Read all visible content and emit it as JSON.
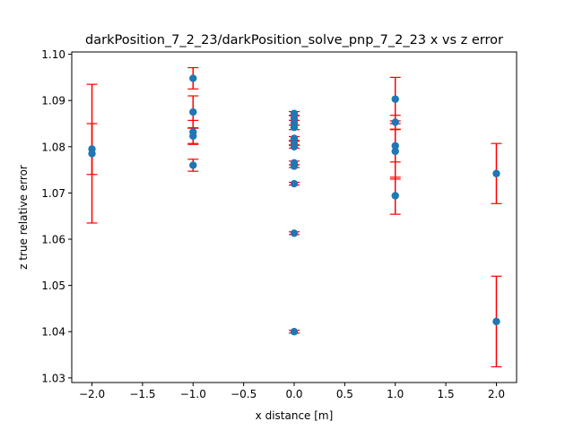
{
  "chart_data": {
    "type": "scatter",
    "title": "darkPosition_7_2_23/darkPosition_solve_pnp_7_2_23 x vs z error",
    "xlabel": "x distance [m]",
    "ylabel": "z true relative error",
    "xlim": [
      -2.2,
      2.2
    ],
    "ylim": [
      1.029,
      1.1005
    ],
    "xticks": [
      -2.0,
      -1.5,
      -1.0,
      -0.5,
      0.0,
      0.5,
      1.0,
      1.5,
      2.0
    ],
    "xtick_labels": [
      "−2.0",
      "−1.5",
      "−1.0",
      "−0.5",
      "0.0",
      "0.5",
      "1.0",
      "1.5",
      "2.0"
    ],
    "yticks": [
      1.03,
      1.04,
      1.05,
      1.06,
      1.07,
      1.08,
      1.09,
      1.1
    ],
    "ytick_labels": [
      "1.03",
      "1.04",
      "1.05",
      "1.06",
      "1.07",
      "1.08",
      "1.09",
      "1.10"
    ],
    "grid": false,
    "marker_color": "#1f77b4",
    "errorbar_color": "#ff0000",
    "points": [
      {
        "x": -2,
        "y": 1.0795,
        "err": 0.0055
      },
      {
        "x": -2,
        "y": 1.0785,
        "err": 0.015
      },
      {
        "x": -1,
        "y": 1.0948,
        "err": 0.0023
      },
      {
        "x": -1,
        "y": 1.0875,
        "err": 0.0035
      },
      {
        "x": -1,
        "y": 1.0832,
        "err": 0.0025
      },
      {
        "x": -1,
        "y": 1.0823,
        "err": 0.0018
      },
      {
        "x": -1,
        "y": 1.076,
        "err": 0.0013
      },
      {
        "x": 0,
        "y": 1.0872,
        "err": 0.0004
      },
      {
        "x": 0,
        "y": 1.0862,
        "err": 0.0005
      },
      {
        "x": 0,
        "y": 1.0852,
        "err": 0.0005
      },
      {
        "x": 0,
        "y": 1.0842,
        "err": 0.0005
      },
      {
        "x": 0,
        "y": 1.0818,
        "err": 0.0004
      },
      {
        "x": 0,
        "y": 1.0808,
        "err": 0.0004
      },
      {
        "x": 0,
        "y": 1.08,
        "err": 0.0003
      },
      {
        "x": 0,
        "y": 1.0765,
        "err": 0.0004
      },
      {
        "x": 0,
        "y": 1.0758,
        "err": 0.0003
      },
      {
        "x": 0,
        "y": 1.072,
        "err": 0.0003
      },
      {
        "x": 0,
        "y": 1.0613,
        "err": 0.0003
      },
      {
        "x": 0,
        "y": 1.04,
        "err": 0.0003
      },
      {
        "x": 1,
        "y": 1.0903,
        "err": 0.0047
      },
      {
        "x": 1,
        "y": 1.0853,
        "err": 0.0015
      },
      {
        "x": 1,
        "y": 1.0802,
        "err": 0.0035
      },
      {
        "x": 1,
        "y": 1.079,
        "err": 0.006
      },
      {
        "x": 1,
        "y": 1.0694,
        "err": 0.004
      },
      {
        "x": 2,
        "y": 1.0742,
        "err": 0.0065
      },
      {
        "x": 2,
        "y": 1.0422,
        "err": 0.0098
      }
    ]
  }
}
